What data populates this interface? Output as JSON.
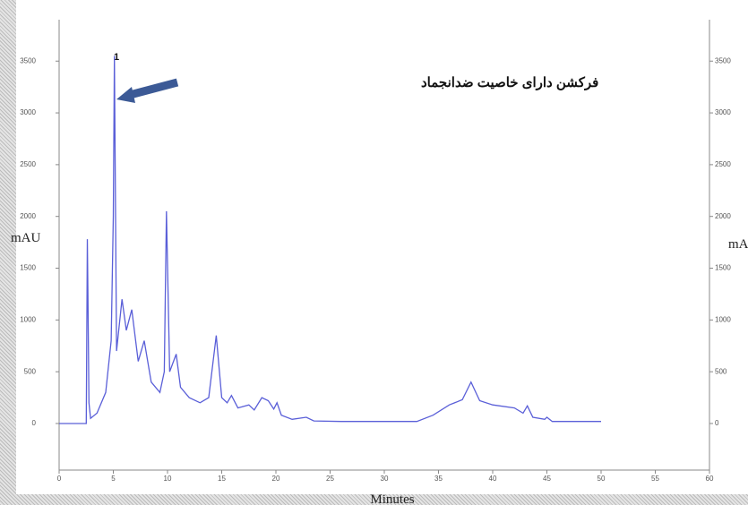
{
  "chart_data": {
    "type": "line",
    "y_label": "mAU",
    "y2_label": "mAU",
    "x_label": "Minutes",
    "annotations": [
      "فرکشن دارای خاصیت ضدانجماد",
      "1"
    ],
    "color": "#5a5fd8",
    "x": [
      0,
      2.5,
      2.6,
      2.65,
      2.75,
      2.9,
      3.5,
      4.3,
      4.8,
      5.0,
      5.1,
      5.3,
      5.8,
      6.2,
      6.7,
      7.3,
      7.85,
      8.5,
      9.3,
      9.7,
      9.9,
      10.2,
      10.8,
      11.2,
      12,
      13,
      13.8,
      14.5,
      15,
      15.5,
      15.9,
      16.5,
      17.5,
      18,
      18.7,
      19.3,
      19.8,
      20.1,
      20.5,
      21.5,
      22.8,
      23.5,
      26,
      33,
      34.5,
      36,
      37.2,
      38.0,
      38.8,
      40,
      42,
      42.8,
      43.2,
      43.7,
      44.8,
      45,
      45.5,
      50
    ],
    "values": [
      0,
      0,
      1780,
      1300,
      200,
      50,
      100,
      300,
      800,
      2000,
      3550,
      700,
      1200,
      900,
      1100,
      600,
      800,
      400,
      300,
      500,
      2050,
      500,
      670,
      350,
      250,
      200,
      250,
      850,
      250,
      200,
      270,
      150,
      180,
      130,
      250,
      220,
      140,
      200,
      80,
      40,
      60,
      25,
      20,
      20,
      80,
      180,
      230,
      400,
      220,
      180,
      150,
      100,
      170,
      60,
      40,
      60,
      20,
      20
    ],
    "xlim": [
      0,
      60
    ],
    "ylim": [
      -450,
      3900
    ],
    "xticks": [
      0,
      5,
      10,
      15,
      20,
      25,
      30,
      35,
      40,
      45,
      50,
      55,
      60
    ],
    "yticks": [
      0,
      500,
      1000,
      1500,
      2000,
      2500,
      3000,
      3500
    ]
  }
}
